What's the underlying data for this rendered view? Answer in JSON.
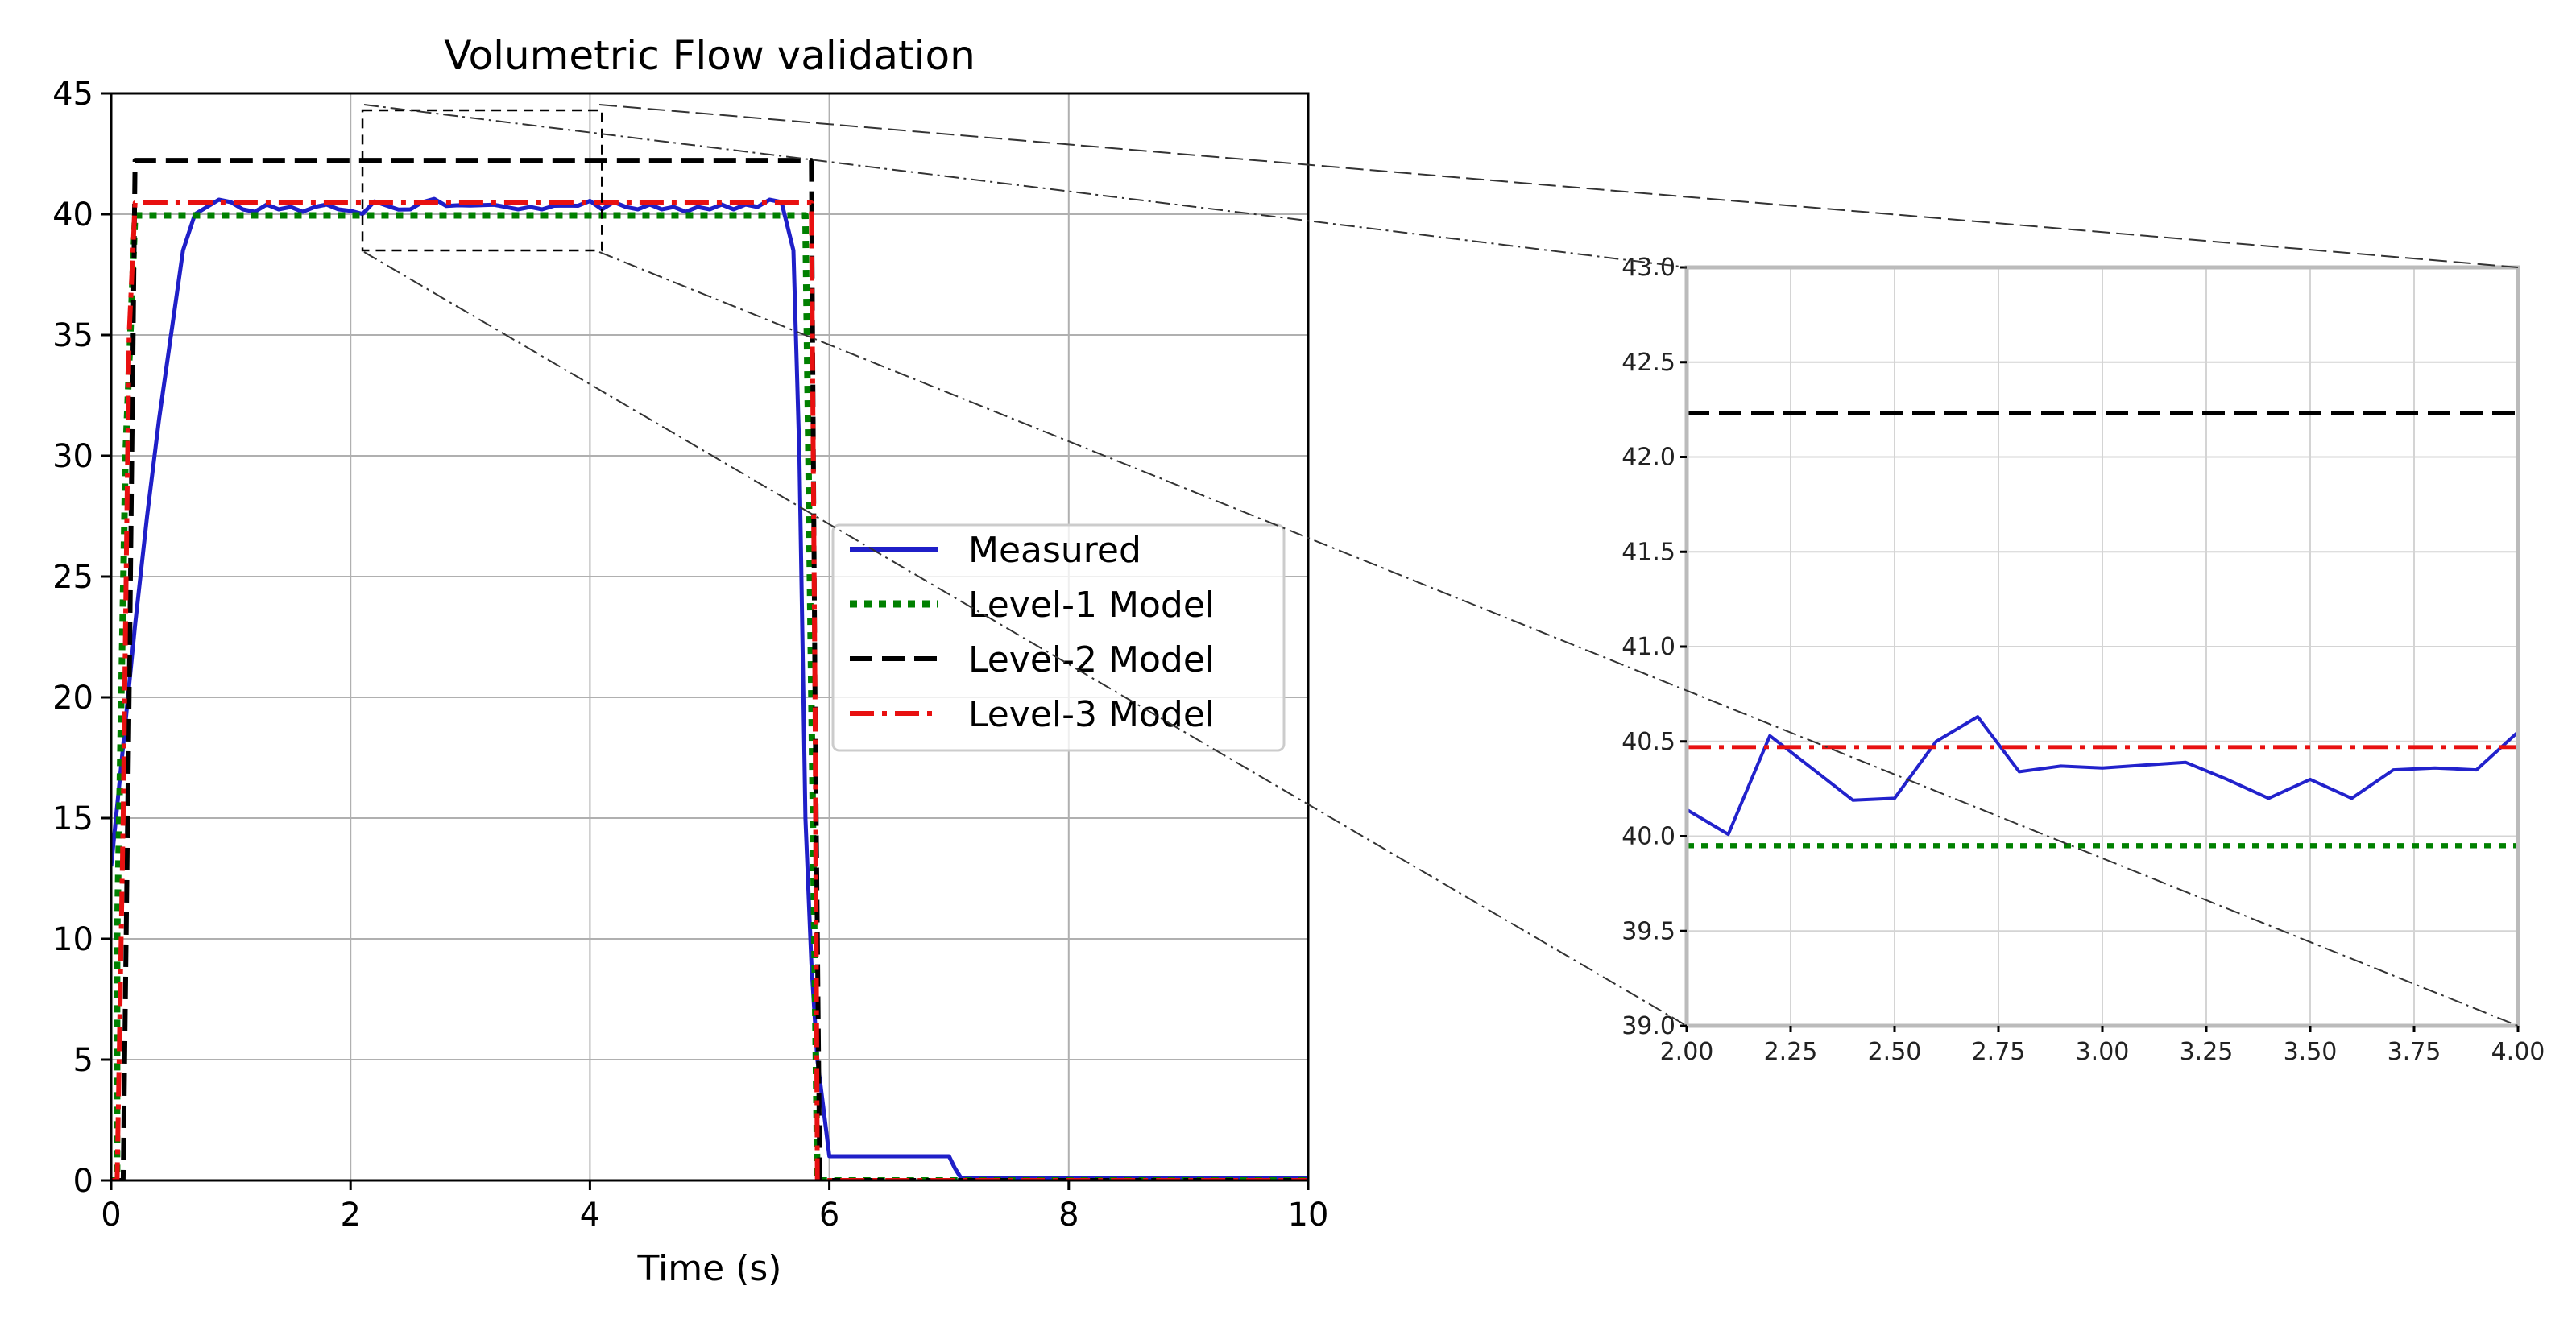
{
  "chart_data": [
    {
      "type": "line",
      "title": "Volumetric Flow validation",
      "xlabel": "Time (s)",
      "ylabel": "",
      "xlim": [
        0,
        10
      ],
      "ylim": [
        0,
        45
      ],
      "xticks": [
        0,
        2,
        4,
        6,
        8,
        10
      ],
      "yticks": [
        0,
        5,
        10,
        15,
        20,
        25,
        30,
        35,
        40,
        45
      ],
      "xtick_labels": [
        "0",
        "2",
        "4",
        "6",
        "8",
        "10"
      ],
      "ytick_labels": [
        "0",
        "5",
        "10",
        "15",
        "20",
        "25",
        "30",
        "35",
        "40",
        "45"
      ],
      "grid": true,
      "legend_position": "center-right",
      "series": [
        {
          "name": "Measured",
          "color": "#1f1fc8",
          "style": "solid",
          "x": [
            0,
            0.1,
            0.2,
            0.3,
            0.4,
            0.5,
            0.6,
            0.7,
            0.8,
            0.9,
            1.0,
            1.1,
            1.2,
            1.3,
            1.4,
            1.5,
            1.6,
            1.7,
            1.8,
            1.9,
            2.0,
            2.1,
            2.2,
            2.3,
            2.4,
            2.5,
            2.6,
            2.7,
            2.8,
            2.9,
            3.0,
            3.2,
            3.4,
            3.5,
            3.6,
            3.7,
            3.8,
            3.9,
            4.0,
            4.1,
            4.2,
            4.3,
            4.4,
            4.5,
            4.6,
            4.7,
            4.8,
            4.9,
            5.0,
            5.1,
            5.2,
            5.3,
            5.4,
            5.5,
            5.6,
            5.7,
            5.75,
            5.8,
            5.85,
            5.9,
            5.95,
            6.0,
            6.1,
            7.0,
            7.05,
            7.1,
            10.0
          ],
          "y": [
            13,
            18,
            23,
            27.5,
            31.5,
            35,
            38.5,
            40,
            40.3,
            40.6,
            40.5,
            40.2,
            40.1,
            40.4,
            40.2,
            40.3,
            40.1,
            40.3,
            40.4,
            40.2,
            40.14,
            40.01,
            40.53,
            40.36,
            40.19,
            40.2,
            40.5,
            40.63,
            40.34,
            40.37,
            40.36,
            40.39,
            40.2,
            40.3,
            40.2,
            40.35,
            40.36,
            40.35,
            40.55,
            40.2,
            40.5,
            40.3,
            40.2,
            40.4,
            40.2,
            40.3,
            40.1,
            40.3,
            40.2,
            40.4,
            40.2,
            40.4,
            40.3,
            40.6,
            40.5,
            38.5,
            30,
            15,
            9,
            5,
            3,
            1.0,
            1.0,
            1.0,
            0.5,
            0.1,
            0.1
          ]
        },
        {
          "name": "Level-1 Model",
          "color": "#008000",
          "style": "dotted",
          "x": [
            0,
            0.05,
            0.05,
            0.12,
            0.2,
            5.8,
            5.85,
            5.9,
            5.9,
            10.0
          ],
          "y": [
            0,
            0,
            10,
            30,
            39.95,
            39.95,
            20,
            0,
            0,
            0
          ]
        },
        {
          "name": "Level-2 Model",
          "color": "#000000",
          "style": "dashed",
          "x": [
            0,
            0.1,
            0.15,
            0.2,
            5.85,
            5.88,
            5.92,
            10.0
          ],
          "y": [
            0,
            0,
            20,
            42.23,
            42.23,
            20,
            0,
            0
          ]
        },
        {
          "name": "Level-3 Model",
          "color": "#e81010",
          "style": "dashdot",
          "x": [
            0,
            0.05,
            0.1,
            0.15,
            0.2,
            5.85,
            5.88,
            5.9,
            10.0
          ],
          "y": [
            0,
            0,
            15,
            35,
            40.47,
            40.47,
            20,
            0,
            0
          ]
        }
      ]
    },
    {
      "type": "line",
      "title": "",
      "xlabel": "",
      "ylabel": "",
      "xlim": [
        2.0,
        4.0
      ],
      "ylim": [
        39.0,
        43.0
      ],
      "xticks": [
        2.0,
        2.25,
        2.5,
        2.75,
        3.0,
        3.25,
        3.5,
        3.75,
        4.0
      ],
      "yticks": [
        39.0,
        39.5,
        40.0,
        40.5,
        41.0,
        41.5,
        42.0,
        42.5,
        43.0
      ],
      "xtick_labels": [
        "2.00",
        "2.25",
        "2.50",
        "2.75",
        "3.00",
        "3.25",
        "3.50",
        "3.75",
        "4.00"
      ],
      "ytick_labels": [
        "39.0",
        "39.5",
        "40.0",
        "40.5",
        "41.0",
        "41.5",
        "42.0",
        "42.5",
        "43.0"
      ],
      "grid": true,
      "legend_position": "none",
      "series": [
        {
          "name": "Measured",
          "color": "#2222cc",
          "style": "solid",
          "x": [
            2.0,
            2.1,
            2.2,
            2.3,
            2.4,
            2.5,
            2.6,
            2.7,
            2.8,
            2.9,
            3.0,
            3.2,
            3.3,
            3.4,
            3.5,
            3.6,
            3.7,
            3.8,
            3.9,
            4.0
          ],
          "y": [
            40.14,
            40.01,
            40.53,
            40.36,
            40.19,
            40.2,
            40.5,
            40.63,
            40.34,
            40.37,
            40.36,
            40.39,
            40.3,
            40.2,
            40.3,
            40.2,
            40.35,
            40.36,
            40.35,
            40.55
          ]
        },
        {
          "name": "Level-1 Model",
          "color": "#008000",
          "style": "dotted",
          "x": [
            2.0,
            4.0
          ],
          "y": [
            39.95,
            39.95
          ]
        },
        {
          "name": "Level-2 Model",
          "color": "#000000",
          "style": "dashed",
          "x": [
            2.0,
            4.0
          ],
          "y": [
            42.23,
            42.23
          ]
        },
        {
          "name": "Level-3 Model",
          "color": "#e81010",
          "style": "dashdot",
          "x": [
            2.0,
            4.0
          ],
          "y": [
            40.47,
            40.47
          ]
        }
      ]
    }
  ],
  "zoom_region": {
    "x": [
      2.1,
      4.1
    ],
    "y": [
      38.5,
      44.3
    ]
  }
}
